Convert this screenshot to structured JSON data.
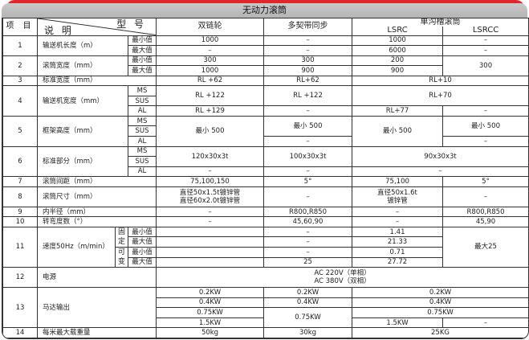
{
  "title": "无动力滚筒",
  "colors": {
    "accent_red": "#e0262a",
    "title_bar": "#bdbdbd",
    "border": "#333333"
  },
  "header": {
    "item": "项 目",
    "desc": "说 明",
    "model": "型 号",
    "models": [
      "双链轮",
      "多契带同步"
    ],
    "group": "单沟槽滚筒",
    "group_sub": [
      "LSRC",
      "LSRCC"
    ]
  },
  "rows": [
    [
      {
        "t": "1",
        "rs": 2
      },
      {
        "t": "输送机长度（m）",
        "cs": 2,
        "rs": 2,
        "l": 1
      },
      {
        "t": "最小值"
      },
      {
        "t": "1000"
      },
      {
        "t": "–"
      },
      {
        "t": "1000"
      },
      {
        "t": "–"
      }
    ],
    [
      {
        "t": "最大值"
      },
      {
        "t": "–"
      },
      {
        "t": "–"
      },
      {
        "t": "6000"
      },
      {
        "t": "–"
      }
    ],
    [
      {
        "t": "2",
        "rs": 2
      },
      {
        "t": "滚筒宽度（mm）",
        "cs": 2,
        "rs": 2,
        "l": 1
      },
      {
        "t": "最小值"
      },
      {
        "t": "300"
      },
      {
        "t": "300"
      },
      {
        "t": "200"
      },
      {
        "t": "300",
        "rs": 2
      }
    ],
    [
      {
        "t": "最大值"
      },
      {
        "t": "1000"
      },
      {
        "t": "900"
      },
      {
        "t": "900"
      }
    ],
    [
      {
        "t": "3"
      },
      {
        "t": "标准宽度（mm）",
        "cs": 3,
        "l": 1
      },
      {
        "t": "RL +62"
      },
      {
        "t": "RL+62"
      },
      {
        "t": "RL+10",
        "cs": 2
      }
    ],
    [
      {
        "t": "4",
        "rs": 3
      },
      {
        "t": "输送机宽度（mm）",
        "cs": 2,
        "rs": 3,
        "l": 1
      },
      {
        "t": "MS"
      },
      {
        "t": "RL +122",
        "rs": 2
      },
      {
        "t": "RL +122",
        "rs": 2
      },
      {
        "t": "RL+70",
        "cs": 2,
        "rs": 2
      }
    ],
    [
      {
        "t": "SUS"
      }
    ],
    [
      {
        "t": "AL"
      },
      {
        "t": "RL +129"
      },
      {
        "t": "–"
      },
      {
        "t": "RL+77"
      },
      {
        "t": "–"
      }
    ],
    [
      {
        "t": "5",
        "rs": 3
      },
      {
        "t": "框架高度（mm）",
        "cs": 2,
        "rs": 3,
        "l": 1
      },
      {
        "t": "MS"
      },
      {
        "t": "最小 500",
        "rs": 3
      },
      {
        "t": "最小 500",
        "rs": 2
      },
      {
        "t": "最小 500",
        "rs": 3
      },
      {
        "t": "最小 500",
        "rs": 2
      }
    ],
    [
      {
        "t": "SUS"
      }
    ],
    [
      {
        "t": "AL"
      },
      {
        "t": "–"
      },
      {
        "t": "–"
      }
    ],
    [
      {
        "t": "6",
        "rs": 3
      },
      {
        "t": "标准部分（mm）",
        "cs": 2,
        "rs": 3,
        "l": 1
      },
      {
        "t": "MS"
      },
      {
        "t": "120x30x3t",
        "rs": 2
      },
      {
        "t": "100x30x3t",
        "rs": 2
      },
      {
        "t": "90x30x3t",
        "cs": 2,
        "rs": 2
      }
    ],
    [
      {
        "t": "SUS"
      }
    ],
    [
      {
        "t": "AL"
      },
      {
        "t": "–"
      },
      {
        "t": "–"
      },
      {
        "t": "–",
        "cs": 2
      }
    ],
    [
      {
        "t": "7"
      },
      {
        "t": "滚筒间距（mm）",
        "cs": 3,
        "l": 1
      },
      {
        "t": "75,100,150"
      },
      {
        "t": "5°"
      },
      {
        "t": "75,100"
      },
      {
        "t": "5°"
      }
    ],
    [
      {
        "t": "8",
        "rs": 2
      },
      {
        "t": "滚筒尺寸（mm）",
        "cs": 3,
        "rs": 2,
        "l": 1
      },
      {
        "t": "直径50x1.5t镀锌管",
        "t2": "直径60x2.0t镀锌管",
        "rs": 2
      },
      {
        "t": "–",
        "rs": 2
      },
      {
        "t": "直径50x1.6t",
        "t2": "镀锌管",
        "rs": 2
      },
      {
        "t": "–",
        "rs": 2
      }
    ],
    [],
    [
      {
        "t": "9"
      },
      {
        "t": "内半径（mm）",
        "cs": 3,
        "l": 1
      },
      {
        "t": "–"
      },
      {
        "t": "R800,R850"
      },
      {
        "t": "–"
      },
      {
        "t": "R800,R850"
      }
    ],
    [
      {
        "t": "10"
      },
      {
        "t": "转弯度数（°）",
        "cs": 3,
        "l": 1
      },
      {
        "t": "–"
      },
      {
        "t": "45,60,90"
      },
      {
        "t": "–"
      },
      {
        "t": "45,90"
      }
    ],
    [
      {
        "t": "11",
        "rs": 4
      },
      {
        "t": "速度50Hz（m/min）",
        "rs": 4,
        "l": 1
      },
      {
        "t": "固定",
        "rs": 2,
        "v": 1
      },
      {
        "t": "最小值"
      },
      {
        "t": ""
      },
      {
        "t": "–"
      },
      {
        "t": "1.41"
      },
      {
        "t": "最大25",
        "rs": 4
      }
    ],
    [
      {
        "t": "最大值"
      },
      {
        "t": ""
      },
      {
        "t": "–"
      },
      {
        "t": "21.33"
      }
    ],
    [
      {
        "t": "可变",
        "rs": 2,
        "v": 1
      },
      {
        "t": "最小值"
      },
      {
        "t": ""
      },
      {
        "t": "–"
      },
      {
        "t": "0.71"
      }
    ],
    [
      {
        "t": "最大值"
      },
      {
        "t": ""
      },
      {
        "t": "25"
      },
      {
        "t": "27.72"
      }
    ],
    [
      {
        "t": "12",
        "rs": 2
      },
      {
        "t": "电源",
        "cs": 3,
        "rs": 2,
        "l": 1
      },
      {
        "t": "AC 220V（单相）",
        "t2": "AC 380V（双相）",
        "cs": 4,
        "rs": 2
      }
    ],
    [],
    [
      {
        "t": "13",
        "rs": 4
      },
      {
        "t": "马达输出",
        "cs": 3,
        "rs": 4,
        "l": 1
      },
      {
        "t": "0.2KW"
      },
      {
        "t": "0.2KW"
      },
      {
        "t": "0.2KW",
        "cs": 2
      }
    ],
    [
      {
        "t": "0.4KW"
      },
      {
        "t": "0.4KW"
      },
      {
        "t": "0.4KW",
        "cs": 2
      }
    ],
    [
      {
        "t": "0.75KW"
      },
      {
        "t": "0.75KW",
        "rs": 2
      },
      {
        "t": "0.75KW",
        "cs": 2
      }
    ],
    [
      {
        "t": "1.5KW"
      },
      {
        "t": "1.5KW"
      },
      {
        "t": "–"
      }
    ],
    [
      {
        "t": "14"
      },
      {
        "t": "每米最大载重量",
        "cs": 3,
        "l": 1
      },
      {
        "t": "50kg"
      },
      {
        "t": "30kg"
      },
      {
        "t": "25KG",
        "cs": 2
      }
    ]
  ]
}
